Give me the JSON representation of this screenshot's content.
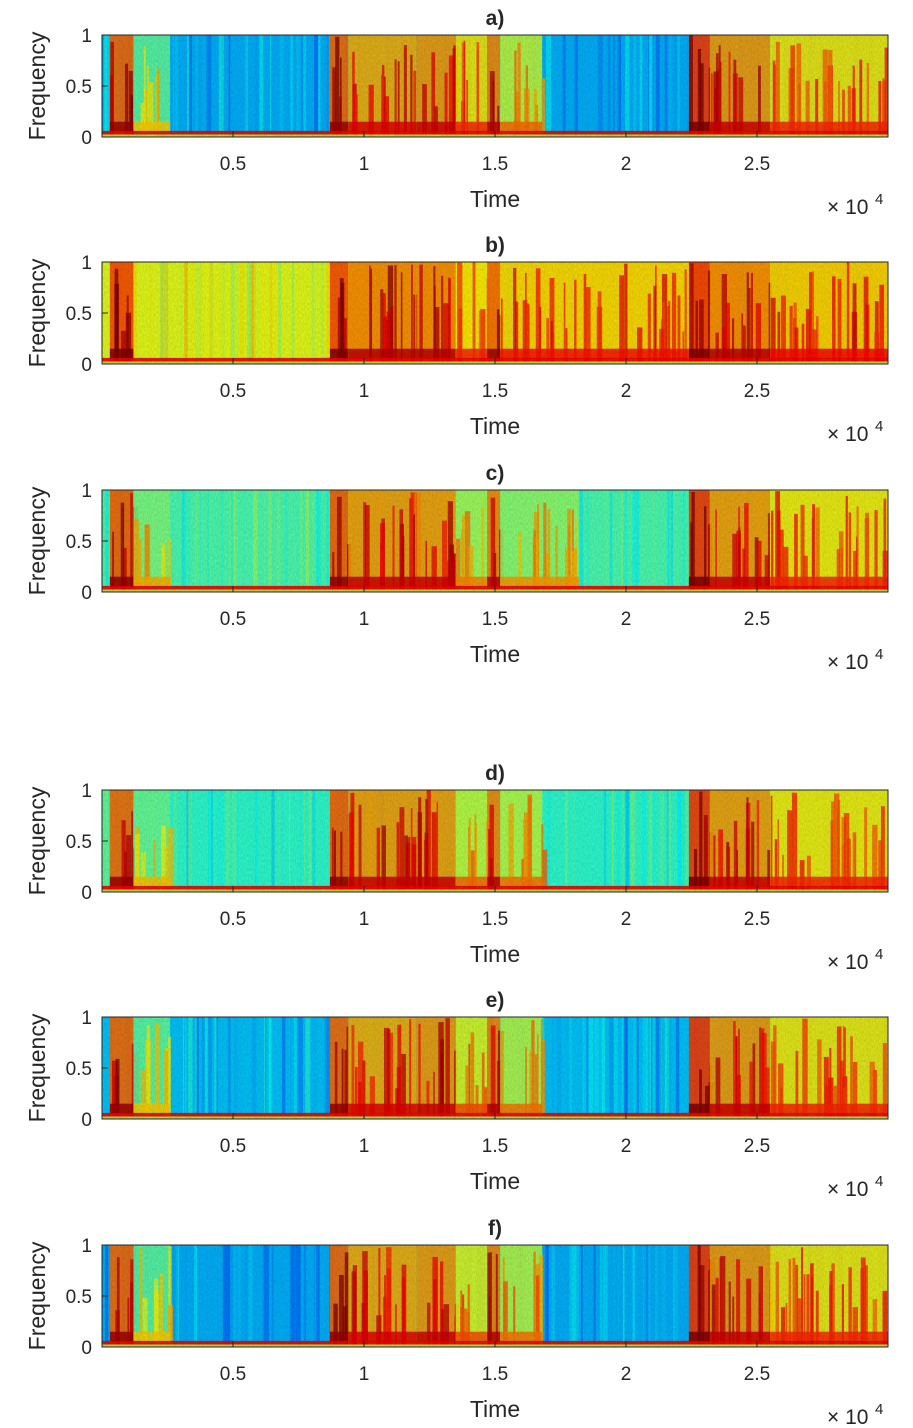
{
  "chart_data": [
    {
      "type": "heatmap",
      "title": "a)",
      "xlabel": "Time",
      "ylabel": "Frequency",
      "xlim": [
        0,
        30000
      ],
      "ylim": [
        0,
        1
      ],
      "x_ticks": [
        5000,
        10000,
        15000,
        20000,
        25000
      ],
      "x_tick_labels": [
        "0.5",
        "1",
        "1.5",
        "2",
        "2.5"
      ],
      "y_ticks": [
        0,
        0.5,
        1
      ],
      "y_tick_labels": [
        "0",
        "0.5",
        "1"
      ],
      "x_exponent_label": "× 10",
      "x_exponent_power": "4",
      "colormap": "jet",
      "silent_level": 0.3,
      "speech_segments": [
        [
          300,
          1200,
          0.85
        ],
        [
          1200,
          2600,
          0.55
        ],
        [
          8700,
          9400,
          0.85
        ],
        [
          9400,
          12000,
          0.78
        ],
        [
          12000,
          13500,
          0.8
        ],
        [
          13500,
          14700,
          0.72
        ],
        [
          14700,
          15200,
          0.82
        ],
        [
          15200,
          16800,
          0.65
        ],
        [
          22400,
          23200,
          0.9
        ],
        [
          23200,
          25500,
          0.8
        ],
        [
          25500,
          30000,
          0.72
        ]
      ]
    },
    {
      "type": "heatmap",
      "title": "b)",
      "xlabel": "Time",
      "ylabel": "Frequency",
      "xlim": [
        0,
        30000
      ],
      "ylim": [
        0,
        1
      ],
      "x_ticks": [
        5000,
        10000,
        15000,
        20000,
        25000
      ],
      "x_tick_labels": [
        "0.5",
        "1",
        "1.5",
        "2",
        "2.5"
      ],
      "y_ticks": [
        0,
        0.5,
        1
      ],
      "y_tick_labels": [
        "0",
        "0.5",
        "1"
      ],
      "x_exponent_label": "× 10",
      "x_exponent_power": "4",
      "colormap": "jet",
      "silent_level": 0.6,
      "speech_segments": [
        [
          300,
          1200,
          0.88
        ],
        [
          8700,
          9400,
          0.88
        ],
        [
          9400,
          12000,
          0.82
        ],
        [
          12000,
          13500,
          0.82
        ],
        [
          13500,
          14700,
          0.72
        ],
        [
          14700,
          15200,
          0.85
        ],
        [
          15200,
          22400,
          0.74
        ],
        [
          22400,
          23200,
          0.9
        ],
        [
          23200,
          25500,
          0.82
        ],
        [
          25500,
          30000,
          0.75
        ]
      ]
    },
    {
      "type": "heatmap",
      "title": "c)",
      "xlabel": "Time",
      "ylabel": "Frequency",
      "xlim": [
        0,
        30000
      ],
      "ylim": [
        0,
        1
      ],
      "x_ticks": [
        5000,
        10000,
        15000,
        20000,
        25000
      ],
      "x_tick_labels": [
        "0.5",
        "1",
        "1.5",
        "2",
        "2.5"
      ],
      "y_ticks": [
        0,
        0.5,
        1
      ],
      "y_tick_labels": [
        "0",
        "0.5",
        "1"
      ],
      "x_exponent_label": "× 10",
      "x_exponent_power": "4",
      "colormap": "jet",
      "silent_level": 0.45,
      "speech_segments": [
        [
          300,
          1200,
          0.86
        ],
        [
          1200,
          2600,
          0.58
        ],
        [
          8700,
          9400,
          0.86
        ],
        [
          9400,
          12000,
          0.8
        ],
        [
          12000,
          13500,
          0.8
        ],
        [
          13500,
          14700,
          0.62
        ],
        [
          14700,
          15200,
          0.82
        ],
        [
          15200,
          18200,
          0.6
        ],
        [
          22400,
          23200,
          0.9
        ],
        [
          23200,
          25500,
          0.8
        ],
        [
          25500,
          30000,
          0.72
        ]
      ]
    },
    {
      "type": "heatmap",
      "title": "d)",
      "xlabel": "Time",
      "ylabel": "Frequency",
      "xlim": [
        0,
        30000
      ],
      "ylim": [
        0,
        1
      ],
      "x_ticks": [
        5000,
        10000,
        15000,
        20000,
        25000
      ],
      "x_tick_labels": [
        "0.5",
        "1",
        "1.5",
        "2",
        "2.5"
      ],
      "y_ticks": [
        0,
        0.5,
        1
      ],
      "y_tick_labels": [
        "0",
        "0.5",
        "1"
      ],
      "x_exponent_label": "× 10",
      "x_exponent_power": "4",
      "colormap": "jet",
      "silent_level": 0.42,
      "speech_segments": [
        [
          300,
          1200,
          0.85
        ],
        [
          1200,
          2600,
          0.56
        ],
        [
          8700,
          9400,
          0.86
        ],
        [
          9400,
          12000,
          0.8
        ],
        [
          12000,
          13500,
          0.8
        ],
        [
          13500,
          14700,
          0.65
        ],
        [
          14700,
          15200,
          0.82
        ],
        [
          15200,
          16800,
          0.64
        ],
        [
          22400,
          23200,
          0.9
        ],
        [
          23200,
          25500,
          0.8
        ],
        [
          25500,
          30000,
          0.72
        ]
      ]
    },
    {
      "type": "heatmap",
      "title": "e)",
      "xlabel": "Time",
      "ylabel": "Frequency",
      "xlim": [
        0,
        30000
      ],
      "ylim": [
        0,
        1
      ],
      "x_ticks": [
        5000,
        10000,
        15000,
        20000,
        25000
      ],
      "x_tick_labels": [
        "0.5",
        "1",
        "1.5",
        "2",
        "2.5"
      ],
      "y_ticks": [
        0,
        0.5,
        1
      ],
      "y_tick_labels": [
        "0",
        "0.5",
        "1"
      ],
      "x_exponent_label": "× 10",
      "x_exponent_power": "4",
      "colormap": "jet",
      "silent_level": 0.32,
      "speech_segments": [
        [
          300,
          1200,
          0.85
        ],
        [
          1200,
          2600,
          0.55
        ],
        [
          8700,
          9400,
          0.85
        ],
        [
          9400,
          12000,
          0.78
        ],
        [
          12000,
          13500,
          0.8
        ],
        [
          13500,
          14700,
          0.68
        ],
        [
          14700,
          15200,
          0.82
        ],
        [
          15200,
          16800,
          0.64
        ],
        [
          22400,
          23200,
          0.9
        ],
        [
          23200,
          25500,
          0.8
        ],
        [
          25500,
          30000,
          0.72
        ]
      ]
    },
    {
      "type": "heatmap",
      "title": "f)",
      "xlabel": "Time",
      "ylabel": "Frequency",
      "xlim": [
        0,
        30000
      ],
      "ylim": [
        0,
        1
      ],
      "x_ticks": [
        5000,
        10000,
        15000,
        20000,
        25000
      ],
      "x_tick_labels": [
        "0.5",
        "1",
        "1.5",
        "2",
        "2.5"
      ],
      "y_ticks": [
        0,
        0.5,
        1
      ],
      "y_tick_labels": [
        "0",
        "0.5",
        "1"
      ],
      "x_exponent_label": "× 10",
      "x_exponent_power": "4",
      "colormap": "jet",
      "silent_level": 0.3,
      "speech_segments": [
        [
          300,
          1200,
          0.85
        ],
        [
          1200,
          2600,
          0.55
        ],
        [
          8700,
          9400,
          0.85
        ],
        [
          9400,
          12000,
          0.78
        ],
        [
          12000,
          13500,
          0.8
        ],
        [
          13500,
          14700,
          0.68
        ],
        [
          14700,
          15200,
          0.82
        ],
        [
          15200,
          16800,
          0.64
        ],
        [
          22400,
          23200,
          0.9
        ],
        [
          23200,
          25500,
          0.8
        ],
        [
          25500,
          30000,
          0.72
        ]
      ]
    }
  ]
}
